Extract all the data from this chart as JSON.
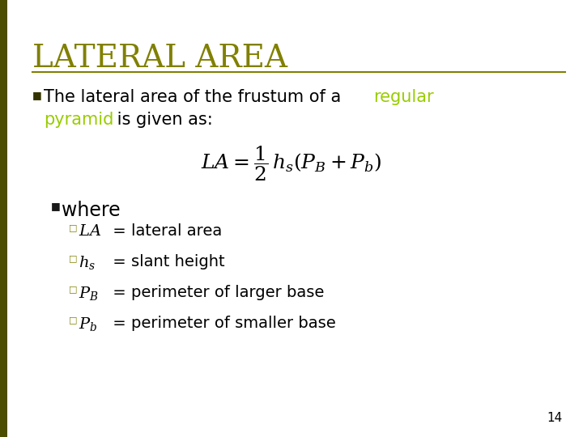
{
  "title": "LATERAL AREA",
  "title_color": "#808000",
  "title_fontsize": 28,
  "background_color": "#FFFFFF",
  "left_bar_color": "#4d4d00",
  "separator_color": "#808000",
  "highlight_color": "#99CC00",
  "formula": "$LA = \\dfrac{1}{2}\\,h_s(P_B + P_b)$",
  "formula_fontsize": 18,
  "where_fontsize": 17,
  "bullet_fontsize": 14,
  "page_number": "14",
  "page_number_fontsize": 11
}
